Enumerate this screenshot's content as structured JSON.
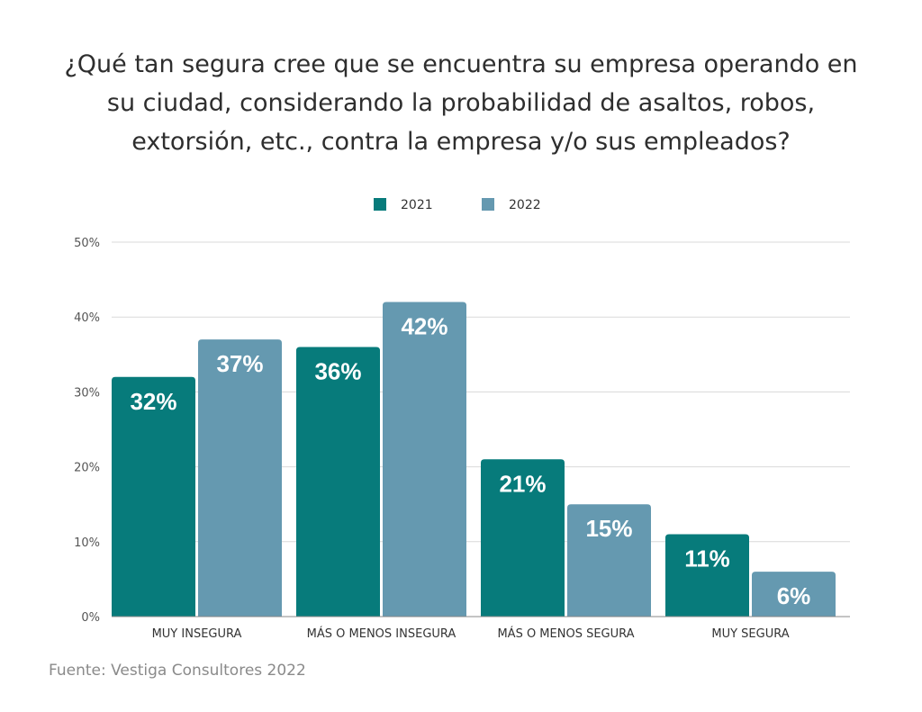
{
  "title_lines": [
    "¿Qué tan segura cree que se encuentra su empresa operando en",
    "su ciudad, considerando la probabilidad de asaltos, robos,",
    "extorsión, etc., contra la empresa y/o sus empleados?"
  ],
  "source": "Fuente: Vestiga Consultores 2022",
  "colors": {
    "series_2021": "#077b7b",
    "series_2022": "#6599b0",
    "grid": "#d9d9d9",
    "axis": "#888888"
  },
  "chart_data": {
    "type": "bar",
    "title": "¿Qué tan segura cree que se encuentra su empresa operando en su ciudad, considerando la probabilidad de asaltos, robos, extorsión, etc., contra la empresa y/o sus empleados?",
    "categories": [
      "MUY INSEGURA",
      "MÁS O MENOS INSEGURA",
      "MÁS O MENOS SEGURA",
      "MUY SEGURA"
    ],
    "series": [
      {
        "name": "2021",
        "values": [
          32,
          36,
          21,
          11
        ],
        "labels": [
          "32%",
          "36%",
          "21%",
          "11%"
        ]
      },
      {
        "name": "2022",
        "values": [
          37,
          42,
          15,
          6
        ],
        "labels": [
          "37%",
          "42%",
          "15%",
          "6%"
        ]
      }
    ],
    "ylim": [
      0,
      50
    ],
    "yticks": [
      0,
      10,
      20,
      30,
      40,
      50
    ],
    "ytick_labels": [
      "0%",
      "10%",
      "20%",
      "30%",
      "40%",
      "50%"
    ],
    "xlabel": "",
    "ylabel": "",
    "grid": true,
    "legend": "top-center"
  }
}
